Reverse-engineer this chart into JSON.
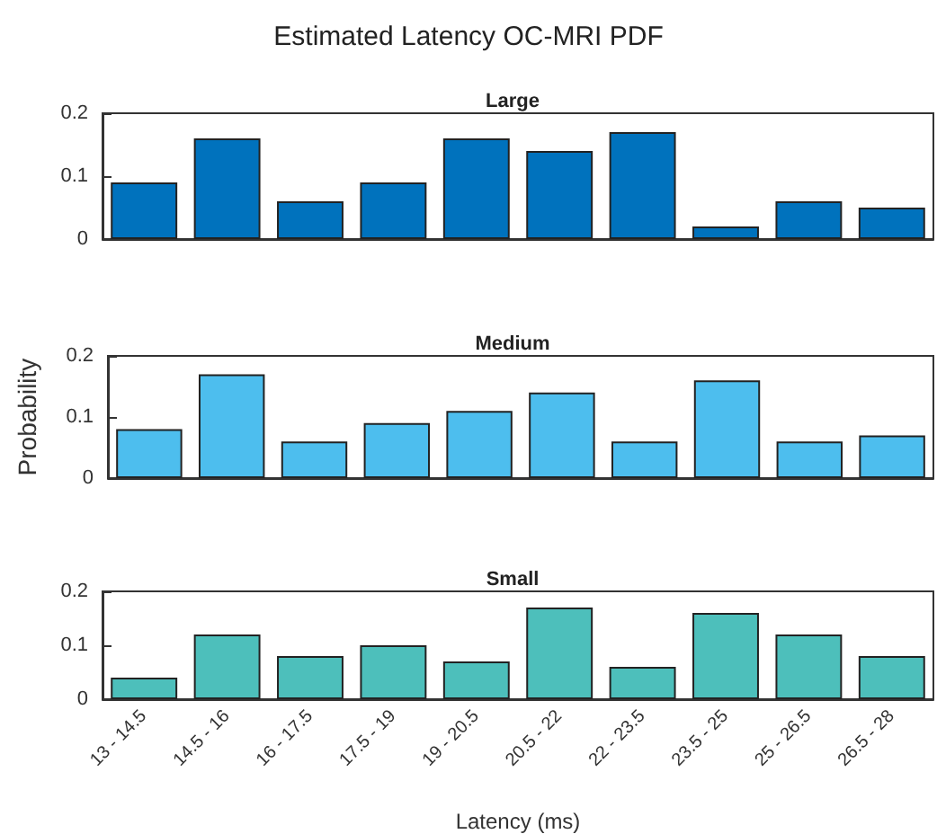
{
  "chart_data": [
    {
      "type": "bar",
      "title": "Estimated Latency OC-MRI PDF",
      "subtitle": "Large",
      "categories": [
        null,
        null,
        null,
        null,
        null,
        null,
        null,
        null,
        null,
        null
      ],
      "series": [
        {
          "color": "#0072bd",
          "values": [
            0.09,
            0.16,
            0.06,
            0.09,
            0.16,
            0.14,
            0.17,
            0.02,
            0.06,
            0.05
          ]
        }
      ],
      "ylim": [
        0,
        0.2
      ],
      "yticks": [
        0,
        0.1,
        0.2
      ],
      "tick_labels": "y",
      "grid": false
    },
    {
      "type": "bar",
      "subtitle": "Medium",
      "ylabel": "Probability",
      "categories": [
        null,
        null,
        null,
        null,
        null,
        null,
        null,
        null,
        null,
        null
      ],
      "series": [
        {
          "color": "#4dbeee",
          "values": [
            0.08,
            0.17,
            0.06,
            0.09,
            0.11,
            0.14,
            0.06,
            0.16,
            0.06,
            0.07
          ]
        }
      ],
      "ylim": [
        0,
        0.2
      ],
      "yticks": [
        0,
        0.1,
        0.2
      ],
      "tick_labels": "y",
      "grid": false
    },
    {
      "type": "bar",
      "subtitle": "Small",
      "xlabel": "Latency (ms)",
      "categories": [
        "13 - 14.5",
        "14.5 - 16",
        "16 - 17.5",
        "17.5 - 19",
        "19 - 20.5",
        "20.5 - 22",
        "22 - 23.5",
        "23.5 - 25",
        "25 - 26.5",
        "26.5 - 28"
      ],
      "series": [
        {
          "color": "#4dbfbb",
          "values": [
            0.04,
            0.12,
            0.08,
            0.1,
            0.07,
            0.17,
            0.06,
            0.16,
            0.12,
            0.08
          ]
        }
      ],
      "ylim": [
        0,
        0.2
      ],
      "yticks": [
        0,
        0.1,
        0.2
      ],
      "grid": false
    }
  ]
}
